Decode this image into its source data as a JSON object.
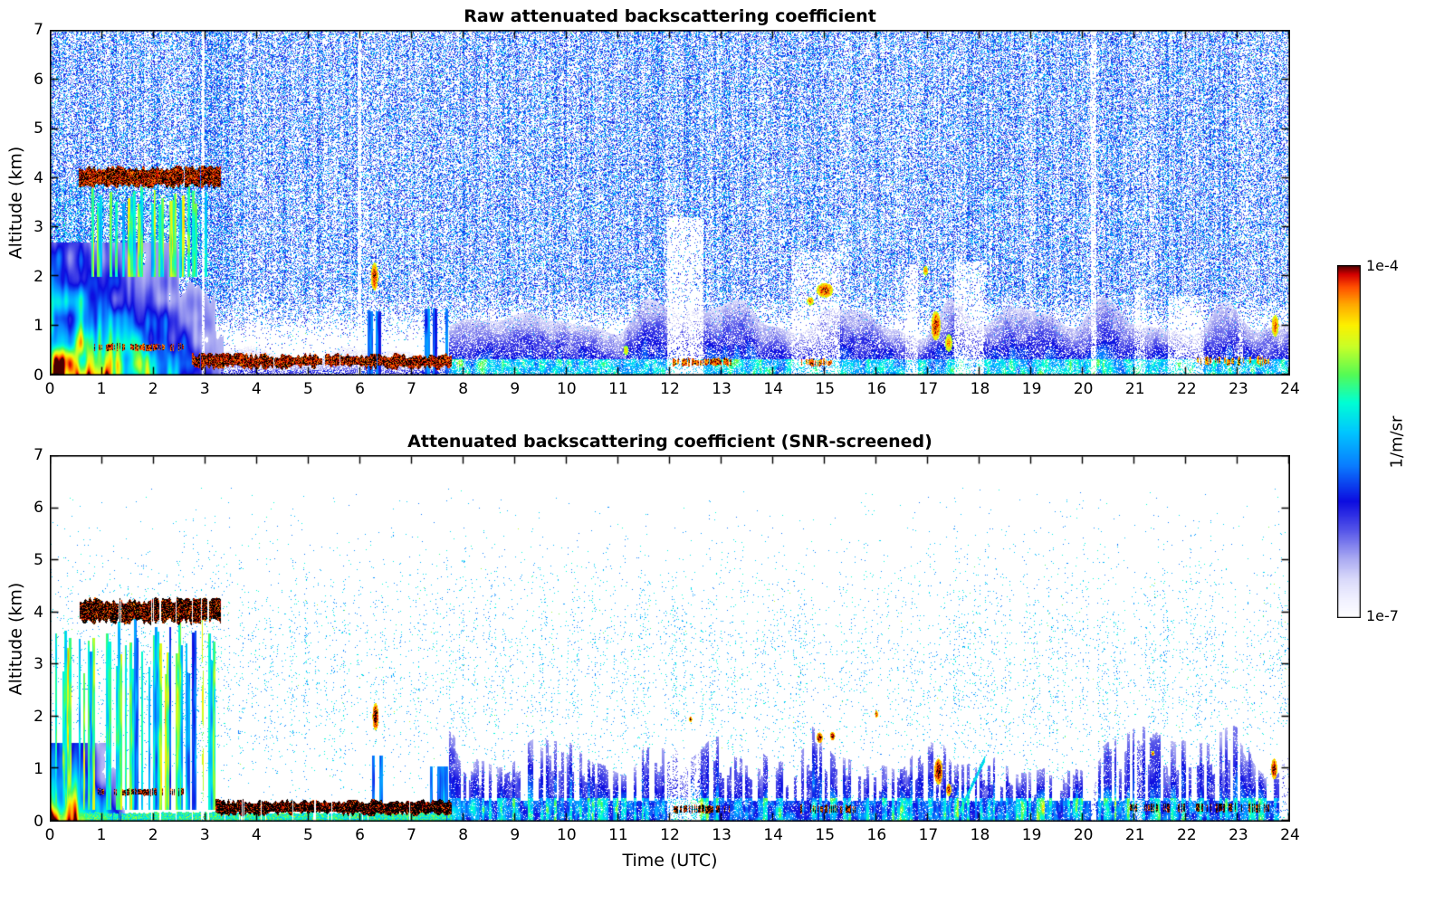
{
  "chart_data": {
    "type": "heatmap",
    "x_axis": {
      "label": "Time (UTC)",
      "range": [
        0,
        24
      ],
      "ticks": [
        0,
        1,
        2,
        3,
        4,
        5,
        6,
        7,
        8,
        9,
        10,
        11,
        12,
        13,
        14,
        15,
        16,
        17,
        18,
        19,
        20,
        21,
        22,
        23,
        24
      ]
    },
    "y_axis": {
      "label": "Altitude (km)",
      "range": [
        0,
        7
      ],
      "ticks": [
        0,
        1,
        2,
        3,
        4,
        5,
        6,
        7
      ]
    },
    "colorbar": {
      "label": "1/m/sr",
      "scale": "log",
      "max": "1e-4",
      "min": "1e-7",
      "stops": [
        [
          0,
          "#ffffff"
        ],
        [
          0.05,
          "#f2f2ff"
        ],
        [
          0.11,
          "#dadafb"
        ],
        [
          0.17,
          "#a8a8f2"
        ],
        [
          0.25,
          "#5353e9"
        ],
        [
          0.33,
          "#0d0de0"
        ],
        [
          0.43,
          "#0a7bff"
        ],
        [
          0.53,
          "#00c9ff"
        ],
        [
          0.61,
          "#00ffd5"
        ],
        [
          0.69,
          "#55fb55"
        ],
        [
          0.77,
          "#c9ff28"
        ],
        [
          0.83,
          "#fdf100"
        ],
        [
          0.89,
          "#ffa800"
        ],
        [
          0.94,
          "#ff4d00"
        ],
        [
          0.975,
          "#d40000"
        ],
        [
          1,
          "#4a0000"
        ]
      ]
    },
    "panels": [
      {
        "id": "raw",
        "title": "Raw attenuated backscattering coefficient",
        "seed": 7,
        "features": [
          {
            "kind": "plume",
            "t": [
              0,
              3.35
            ],
            "zmax": 2.7,
            "vbase": 0.97,
            "vtop": 0.28,
            "tpeak": 0.55
          },
          {
            "kind": "speckle",
            "t": [
              0.1,
              3.05
            ],
            "z": [
              2.4,
              3.95
            ],
            "density": 0.3,
            "v": [
              0.35,
              0.62
            ],
            "streak": 0.55,
            "zprofile": "flat"
          },
          {
            "kind": "columns",
            "t": [
              0.75,
              3.05
            ],
            "z": [
              2.0,
              3.88
            ],
            "v": [
              0.5,
              0.8
            ],
            "colw": 0.05,
            "present": 0.6,
            "ztopvar": 0.25
          },
          {
            "kind": "band",
            "t": [
              0.55,
              3.3
            ],
            "z": [
              3.84,
              4.2
            ],
            "v": [
              0.9,
              1.0
            ],
            "jitter": 0.06,
            "gapchance": 0.05,
            "blackchance": 0.4
          },
          {
            "kind": "band",
            "t": [
              0.85,
              2.6
            ],
            "z": [
              0.5,
              0.63
            ],
            "v": [
              0.88,
              1.0
            ],
            "jitter": 0.02,
            "gapchance": 0.5,
            "blackchance": 0.25
          },
          {
            "kind": "band",
            "t": [
              2.75,
              7.78
            ],
            "z": [
              0.16,
              0.4
            ],
            "v": [
              0.9,
              1.02
            ],
            "jitter": 0.06,
            "gapchance": 0.04,
            "blackchance": 0.3
          },
          {
            "kind": "band",
            "t": [
              12.05,
              13.2
            ],
            "z": [
              0.2,
              0.33
            ],
            "v": [
              0.85,
              1.0
            ],
            "jitter": 0.03,
            "gapchance": 0.3,
            "blackchance": 0.15
          },
          {
            "kind": "band",
            "t": [
              14.45,
              15.15
            ],
            "z": [
              0.2,
              0.31
            ],
            "v": [
              0.85,
              0.98
            ],
            "jitter": 0.03,
            "gapchance": 0.35,
            "blackchance": 0.1
          },
          {
            "kind": "band",
            "t": [
              22.2,
              23.6
            ],
            "z": [
              0.22,
              0.35
            ],
            "v": [
              0.8,
              0.98
            ],
            "jitter": 0.04,
            "gapchance": 0.55,
            "blackchance": 0.15
          },
          {
            "kind": "fillgrad",
            "t": [
              7.72,
              24
            ],
            "ztop": 1.15,
            "ztopvar": 0.5,
            "v0": 0.46,
            "v1": 0.12,
            "surfz": 0.32,
            "surfv": 0.54,
            "porosity": 0.28
          },
          {
            "kind": "fillgrad",
            "t": [
              3.3,
              7.72
            ],
            "ztop": 0.42,
            "ztopvar": 0.22,
            "v0": 0.26,
            "v1": 0.06,
            "surfz": 0.1,
            "surfv": 0.3,
            "porosity": 0.45
          },
          {
            "kind": "columns",
            "t": [
              6.15,
              6.5
            ],
            "z": [
              0,
              1.3
            ],
            "v": [
              0.3,
              0.52
            ],
            "colw": 0.05,
            "present": 0.75
          },
          {
            "kind": "columns",
            "t": [
              7.25,
              7.72
            ],
            "z": [
              0,
              1.35
            ],
            "v": [
              0.3,
              0.52
            ],
            "colw": 0.05,
            "present": 0.75
          },
          {
            "kind": "blob",
            "t": 6.28,
            "z": 2.0,
            "rt": 0.07,
            "rz": 0.28,
            "v": 0.98
          },
          {
            "kind": "blob",
            "t": 15.0,
            "z": 1.72,
            "rt": 0.16,
            "rz": 0.15,
            "v": 0.97
          },
          {
            "kind": "blob",
            "t": 14.72,
            "z": 1.5,
            "rt": 0.07,
            "rz": 0.09,
            "v": 0.9
          },
          {
            "kind": "blob",
            "t": 16.95,
            "z": 2.12,
            "rt": 0.05,
            "rz": 0.1,
            "v": 0.9
          },
          {
            "kind": "blob",
            "t": 17.15,
            "z": 1.0,
            "rt": 0.09,
            "rz": 0.3,
            "v": 0.97
          },
          {
            "kind": "blob",
            "t": 17.4,
            "z": 0.65,
            "rt": 0.07,
            "rz": 0.18,
            "v": 0.9
          },
          {
            "kind": "blob",
            "t": 11.15,
            "z": 0.5,
            "rt": 0.05,
            "rz": 0.1,
            "v": 0.85
          },
          {
            "kind": "blob",
            "t": 23.72,
            "z": 1.0,
            "rt": 0.07,
            "rz": 0.22,
            "v": 0.93
          },
          {
            "kind": "speckle",
            "t": [
              0,
              24
            ],
            "z": [
              0,
              7
            ],
            "density": 0.48,
            "v": [
              0.26,
              0.56
            ],
            "streak": 0.35,
            "zprofile": "sky"
          },
          {
            "kind": "gap",
            "t": [
              2.93,
              2.99
            ],
            "zmax": 7,
            "strength": 0.85
          },
          {
            "kind": "gap",
            "t": [
              5.95,
              6.02
            ],
            "zmax": 7,
            "strength": 0.85
          },
          {
            "kind": "gap",
            "t": [
              11.95,
              12.65
            ],
            "zmax": 3.2,
            "strength": 0.8
          },
          {
            "kind": "gap",
            "t": [
              14.35,
              15.3
            ],
            "zmax": 2.5,
            "strength": 0.6
          },
          {
            "kind": "gap",
            "t": [
              16.55,
              16.8
            ],
            "zmax": 2.2,
            "strength": 0.65
          },
          {
            "kind": "gap",
            "t": [
              17.5,
              18.08
            ],
            "zmax": 2.3,
            "strength": 0.7
          },
          {
            "kind": "gap",
            "t": [
              20.15,
              20.25
            ],
            "zmax": 7,
            "strength": 0.8
          },
          {
            "kind": "gap",
            "t": [
              21.0,
              21.2
            ],
            "zmax": 1.8,
            "strength": 0.6
          },
          {
            "kind": "gap",
            "t": [
              21.65,
              22.35
            ],
            "zmax": 1.6,
            "strength": 0.6
          },
          {
            "kind": "gap",
            "t": [
              23.0,
              23.1
            ],
            "zmax": 1.3,
            "strength": 0.5
          }
        ]
      },
      {
        "id": "screened",
        "title": "Attenuated backscattering coefficient (SNR-screened)",
        "seed": 13,
        "features": [
          {
            "kind": "plume",
            "t": [
              0,
              1.45
            ],
            "zmax": 1.5,
            "vbase": 0.94,
            "vtop": 0.3,
            "tpeak": 0.45
          },
          {
            "kind": "columns",
            "t": [
              0.05,
              3.25
            ],
            "z": [
              0.22,
              3.92
            ],
            "v": [
              0.35,
              0.78
            ],
            "colw": 0.045,
            "present": 0.55,
            "ztopvar": 0.3
          },
          {
            "kind": "band",
            "t": [
              0.55,
              3.3
            ],
            "z": [
              3.82,
              4.22
            ],
            "v": [
              0.9,
              1.04
            ],
            "jitter": 0.07,
            "gapchance": 0.1,
            "blackchance": 0.5
          },
          {
            "kind": "band",
            "t": [
              0.9,
              2.6
            ],
            "z": [
              0.5,
              0.62
            ],
            "v": [
              0.9,
              1.03
            ],
            "jitter": 0.02,
            "gapchance": 0.6,
            "blackchance": 0.4
          },
          {
            "kind": "band",
            "t": [
              3.2,
              7.78
            ],
            "z": [
              0.14,
              0.38
            ],
            "v": [
              0.92,
              1.04
            ],
            "jitter": 0.05,
            "gapchance": 0.06,
            "blackchance": 0.55
          },
          {
            "kind": "band",
            "t": [
              0,
              7.78
            ],
            "z": [
              0,
              0.16
            ],
            "v": [
              0.5,
              0.75
            ],
            "jitter": 0.02,
            "gapchance": 0.12,
            "blackchance": 0
          },
          {
            "kind": "band",
            "t": [
              12.0,
              13.25
            ],
            "z": [
              0.16,
              0.3
            ],
            "v": [
              0.9,
              1.04
            ],
            "jitter": 0.02,
            "gapchance": 0.5,
            "blackchance": 0.5
          },
          {
            "kind": "band",
            "t": [
              14.4,
              15.6
            ],
            "z": [
              0.16,
              0.3
            ],
            "v": [
              0.88,
              1.02
            ],
            "jitter": 0.02,
            "gapchance": 0.6,
            "blackchance": 0.45
          },
          {
            "kind": "band",
            "t": [
              20.9,
              23.6
            ],
            "z": [
              0.18,
              0.33
            ],
            "v": [
              0.9,
              1.04
            ],
            "jitter": 0.02,
            "gapchance": 0.6,
            "blackchance": 0.5
          },
          {
            "kind": "fillgrad",
            "t": [
              7.72,
              24
            ],
            "ztop": 1.35,
            "ztopvar": 0.55,
            "v0": 0.46,
            "v1": 0.16,
            "stripes": true,
            "colw": 0.05,
            "surfz": 0.44,
            "surfv": 0.52,
            "porosity": 0.12
          },
          {
            "kind": "columns",
            "t": [
              6.18,
              6.45
            ],
            "z": [
              0,
              1.25
            ],
            "v": [
              0.3,
              0.5
            ],
            "colw": 0.05,
            "present": 0.65
          },
          {
            "kind": "columns",
            "t": [
              7.3,
              7.7
            ],
            "z": [
              0,
              1.05
            ],
            "v": [
              0.3,
              0.5
            ],
            "colw": 0.05,
            "present": 0.65
          },
          {
            "kind": "blob",
            "t": 6.3,
            "z": 2.0,
            "rt": 0.06,
            "rz": 0.26,
            "v": 1.02
          },
          {
            "kind": "blob",
            "t": 14.9,
            "z": 1.6,
            "rt": 0.06,
            "rz": 0.1,
            "v": 1.02
          },
          {
            "kind": "blob",
            "t": 15.15,
            "z": 1.63,
            "rt": 0.05,
            "rz": 0.08,
            "v": 1.0
          },
          {
            "kind": "blob",
            "t": 16.0,
            "z": 2.05,
            "rt": 0.03,
            "rz": 0.07,
            "v": 0.97
          },
          {
            "kind": "blob",
            "t": 17.2,
            "z": 0.95,
            "rt": 0.08,
            "rz": 0.25,
            "v": 1.02
          },
          {
            "kind": "blob",
            "t": 17.4,
            "z": 0.6,
            "rt": 0.05,
            "rz": 0.12,
            "v": 0.97
          },
          {
            "kind": "blob",
            "t": 12.4,
            "z": 1.95,
            "rt": 0.03,
            "rz": 0.06,
            "v": 0.97
          },
          {
            "kind": "blob",
            "t": 23.7,
            "z": 1.0,
            "rt": 0.06,
            "rz": 0.2,
            "v": 1.0
          },
          {
            "kind": "blob",
            "t": 21.35,
            "z": 1.3,
            "rt": 0.03,
            "rz": 0.05,
            "v": 0.92
          },
          {
            "kind": "diag",
            "p0": [
              17.55,
              0.05
            ],
            "p1": [
              18.1,
              1.2
            ],
            "w": 0.06,
            "v": 0.55
          },
          {
            "kind": "speckle",
            "t": [
              0,
              24
            ],
            "z": [
              0.25,
              6.4
            ],
            "density": 0.05,
            "v": [
              0.42,
              0.62
            ],
            "streak": 0.85,
            "zprofile": "bell"
          },
          {
            "kind": "gap",
            "t": [
              11.95,
              12.6
            ],
            "zmax": 1.7,
            "strength": 0.7
          },
          {
            "kind": "gap",
            "t": [
              2.93,
              2.99
            ],
            "zmax": 7,
            "strength": 0.85
          },
          {
            "kind": "gap",
            "t": [
              20.15,
              20.25
            ],
            "zmax": 7,
            "strength": 0.8
          },
          {
            "kind": "gap",
            "t": [
              21.0,
              21.15
            ],
            "zmax": 1.5,
            "strength": 0.5
          },
          {
            "kind": "gap",
            "t": [
              23.8,
              24
            ],
            "zmax": 1.8,
            "strength": 0.9
          }
        ]
      }
    ]
  }
}
